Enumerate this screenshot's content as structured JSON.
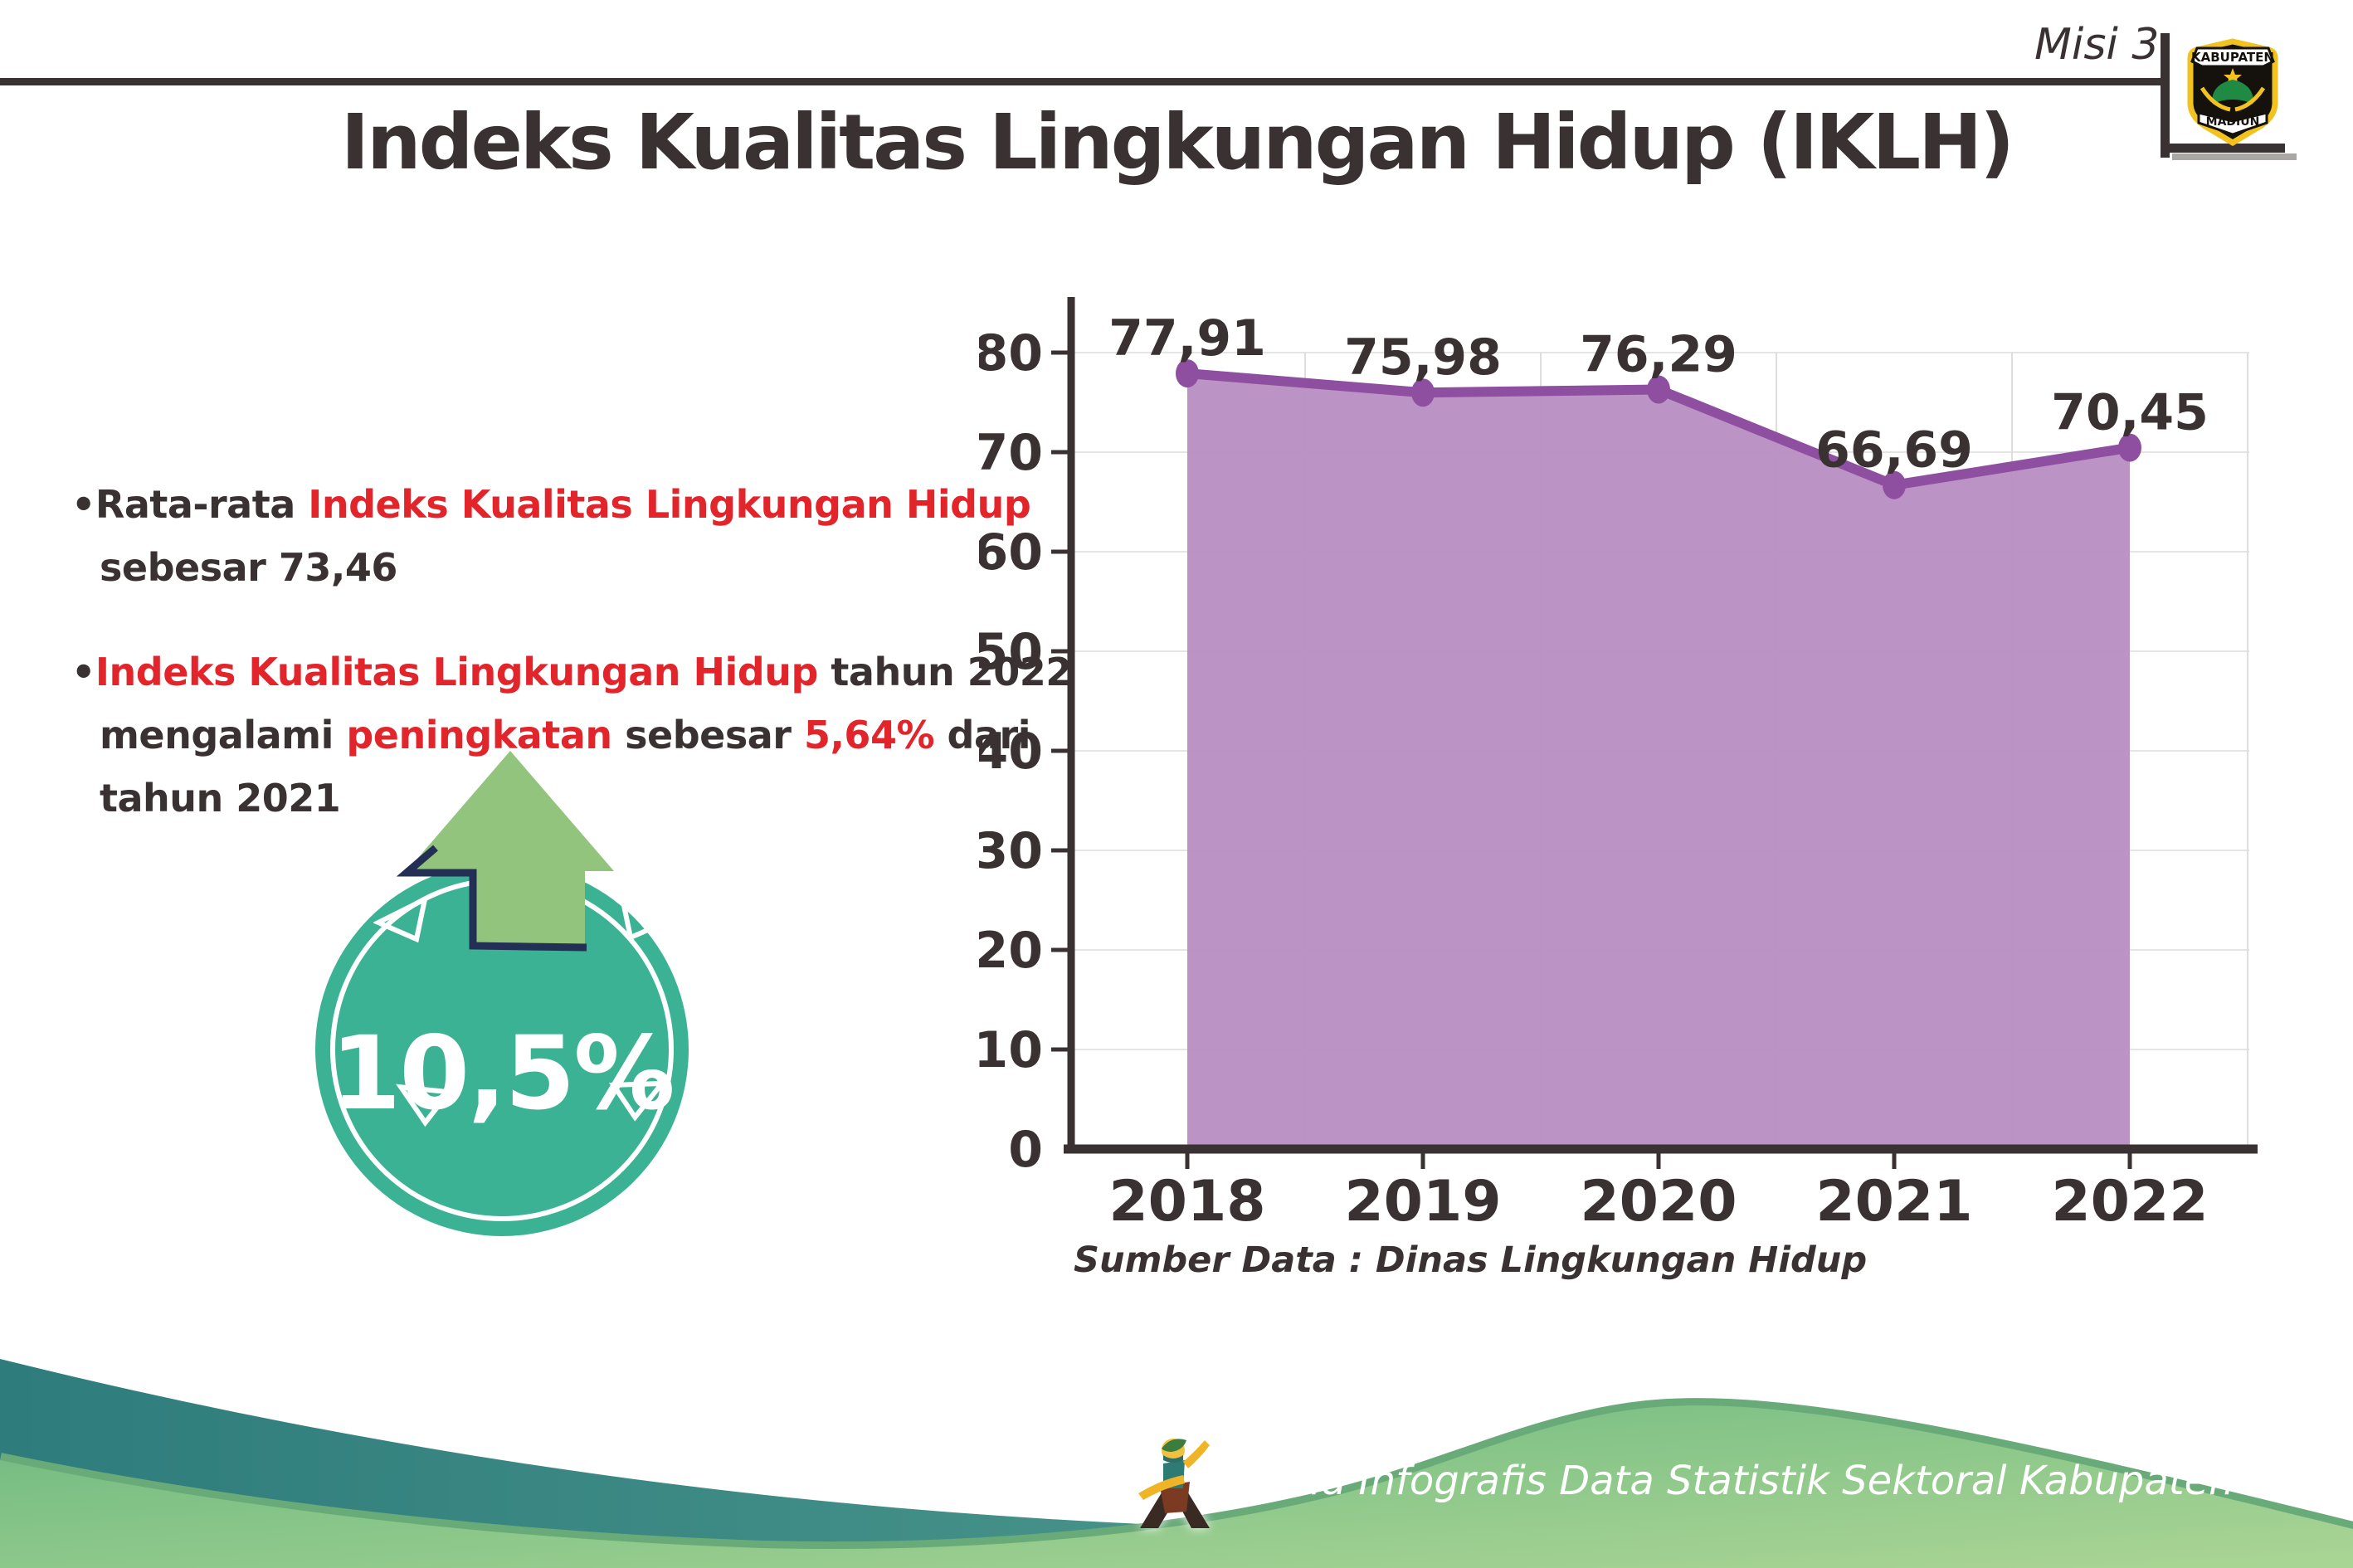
{
  "header": {
    "misi": "Misi 3",
    "title": "Indeks Kualitas Lingkungan Hidup (IKLH)"
  },
  "logo": {
    "top": "KABUPATEN",
    "bottom": "MADIUN"
  },
  "bullets": [
    {
      "lines": [
        {
          "indent": false,
          "parts": [
            [
              "•Rata-rata ",
              "ink"
            ],
            [
              "Indeks Kualitas Lingkungan Hidup",
              "red"
            ]
          ]
        },
        {
          "indent": true,
          "parts": [
            [
              "sebesar 73,46",
              "ink"
            ]
          ]
        }
      ]
    },
    {
      "lines": [
        {
          "indent": false,
          "parts": [
            [
              "•",
              "ink"
            ],
            [
              "Indeks Kualitas Lingkungan Hidup",
              "red"
            ],
            [
              " tahun 2022",
              "ink"
            ]
          ]
        },
        {
          "indent": true,
          "parts": [
            [
              "mengalami ",
              "ink"
            ],
            [
              "peningkatan",
              "red"
            ],
            [
              " sebesar ",
              "ink"
            ],
            [
              "5,64%",
              "red"
            ],
            [
              " dari",
              "ink"
            ]
          ]
        },
        {
          "indent": true,
          "parts": [
            [
              "tahun 2021",
              "ink"
            ]
          ]
        }
      ]
    }
  ],
  "badge": {
    "value": "10,5%"
  },
  "chart_data": {
    "type": "area",
    "categories": [
      "2018",
      "2019",
      "2020",
      "2021",
      "2022"
    ],
    "values": [
      77.91,
      75.98,
      76.29,
      66.69,
      70.45
    ],
    "value_labels": [
      "77,91",
      "75,98",
      "76,29",
      "66,69",
      "70,45"
    ],
    "ylim": [
      0,
      80
    ],
    "yticks": [
      0,
      10,
      20,
      30,
      40,
      50,
      60,
      70,
      80
    ],
    "grid": true,
    "legend": false,
    "line_color": "#8f4fa0",
    "fill_color": "#b88dc2",
    "axis_color": "#3a3132",
    "source_note": "Sumber Data : Dinas Lingkungan Hidup"
  },
  "footer": {
    "text": "Media Infografis Data Statistik Sektoral Kabupaten Madiun |"
  },
  "colors": {
    "ink": "#3a3132",
    "red": "#e2242b",
    "badge_teal": "#3bb293",
    "arrow_green": "#92c47e",
    "arrow_outline": "#232f54",
    "wave_teal_dark": "#2e7c7c",
    "wave_teal_light": "#55a092",
    "wave_green": "#6cb87f",
    "wave_green_light": "#a8d494",
    "wave_rim": "#69aa79"
  }
}
